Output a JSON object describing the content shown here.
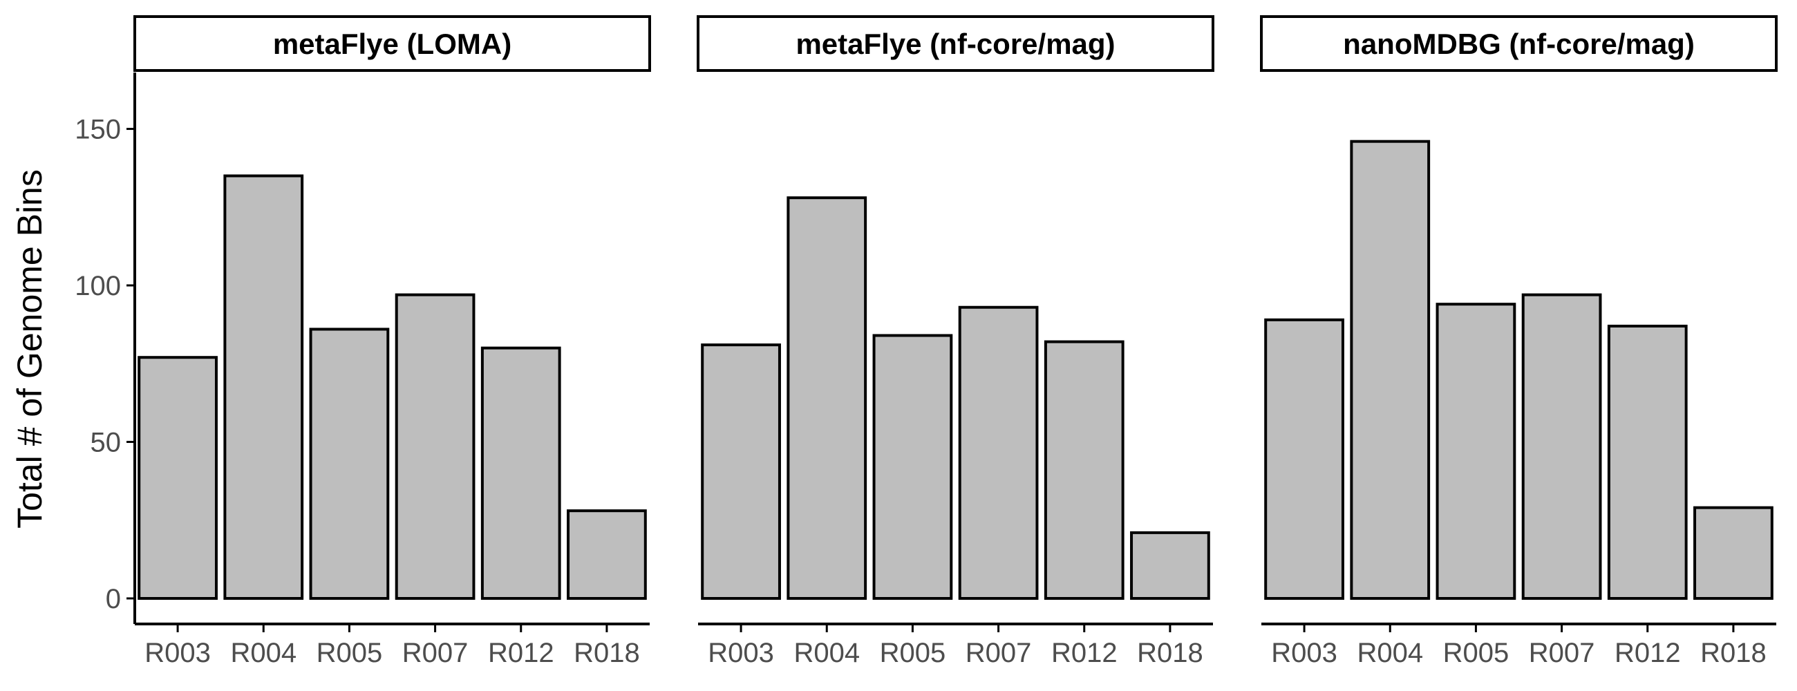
{
  "chart_data": {
    "type": "bar",
    "ylabel": "Total # of Genome Bins",
    "xlabel": "",
    "ylim": [
      0,
      168
    ],
    "yticks": [
      0,
      50,
      100,
      150
    ],
    "categories": [
      "R003",
      "R004",
      "R005",
      "R007",
      "R012",
      "R018"
    ],
    "bar_fill": "#bebebe",
    "bar_stroke": "#000000",
    "grid": false,
    "panels": [
      {
        "title": "metaFlye (LOMA)",
        "values": [
          77,
          135,
          86,
          97,
          80,
          28
        ]
      },
      {
        "title": "metaFlye (nf-core/mag)",
        "values": [
          81,
          128,
          84,
          93,
          82,
          21
        ]
      },
      {
        "title": "nanoMDBG (nf-core/mag)",
        "values": [
          89,
          146,
          94,
          97,
          87,
          29
        ]
      }
    ]
  }
}
